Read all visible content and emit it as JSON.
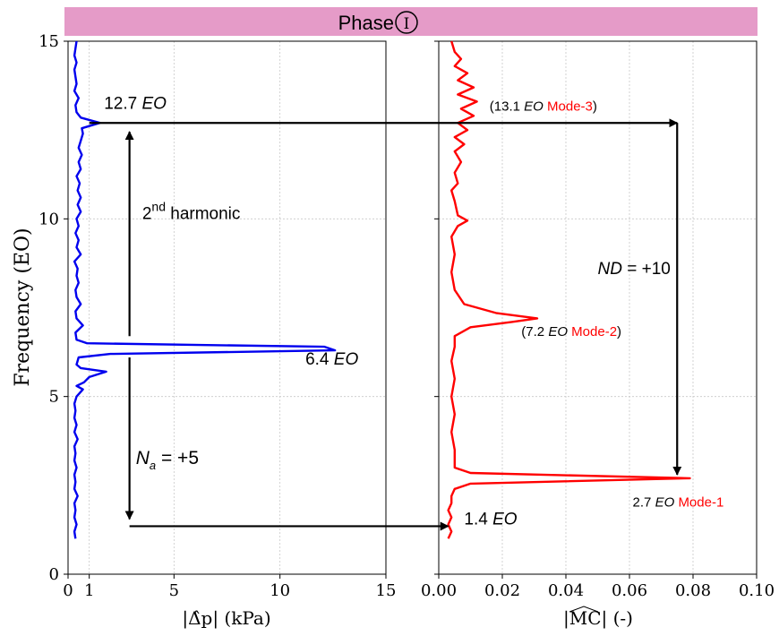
{
  "banner": {
    "title": "Phase",
    "symbol": "I",
    "color": "#e59bc8"
  },
  "chart_data": [
    {
      "type": "line",
      "panel": "left",
      "xlabel": "|Δ̂p| (kPa)",
      "ylabel": "Frequency (EO)",
      "xlim": [
        0,
        15
      ],
      "ylim": [
        0,
        15
      ],
      "xticks": [
        "0",
        "1",
        "5",
        "10",
        "15"
      ],
      "yticks": [
        "0",
        "5",
        "10",
        "15"
      ],
      "grid": true,
      "series": [
        {
          "color": "#0000ee",
          "points": [
            [
              0.35,
              1.0
            ],
            [
              0.3,
              1.2
            ],
            [
              0.4,
              1.4
            ],
            [
              0.3,
              1.6
            ],
            [
              0.35,
              1.8
            ],
            [
              0.3,
              2.0
            ],
            [
              0.45,
              2.2
            ],
            [
              0.3,
              2.4
            ],
            [
              0.35,
              2.6
            ],
            [
              0.3,
              2.8
            ],
            [
              0.4,
              3.0
            ],
            [
              0.3,
              3.2
            ],
            [
              0.35,
              3.4
            ],
            [
              0.3,
              3.6
            ],
            [
              0.45,
              3.8
            ],
            [
              0.3,
              4.0
            ],
            [
              0.4,
              4.2
            ],
            [
              0.3,
              4.4
            ],
            [
              0.35,
              4.6
            ],
            [
              0.3,
              4.8
            ],
            [
              0.4,
              5.0
            ],
            [
              0.7,
              5.2
            ],
            [
              0.4,
              5.3
            ],
            [
              0.75,
              5.4
            ],
            [
              1.0,
              5.55
            ],
            [
              1.8,
              5.7
            ],
            [
              0.6,
              5.8
            ],
            [
              0.4,
              5.9
            ],
            [
              0.5,
              6.1
            ],
            [
              2.0,
              6.2
            ],
            [
              12.6,
              6.3
            ],
            [
              12.1,
              6.4
            ],
            [
              0.9,
              6.5
            ],
            [
              0.4,
              6.6
            ],
            [
              0.35,
              6.8
            ],
            [
              0.7,
              7.0
            ],
            [
              0.4,
              7.2
            ],
            [
              0.35,
              7.4
            ],
            [
              0.6,
              7.6
            ],
            [
              0.4,
              7.8
            ],
            [
              0.35,
              8.0
            ],
            [
              0.5,
              8.2
            ],
            [
              0.4,
              8.4
            ],
            [
              0.45,
              8.6
            ],
            [
              0.3,
              8.8
            ],
            [
              0.6,
              9.0
            ],
            [
              0.4,
              9.2
            ],
            [
              0.5,
              9.4
            ],
            [
              0.35,
              9.6
            ],
            [
              0.5,
              9.8
            ],
            [
              0.4,
              10.0
            ],
            [
              0.6,
              10.2
            ],
            [
              0.45,
              10.4
            ],
            [
              0.6,
              10.6
            ],
            [
              0.45,
              10.8
            ],
            [
              0.55,
              11.0
            ],
            [
              0.4,
              11.2
            ],
            [
              0.6,
              11.4
            ],
            [
              0.5,
              11.6
            ],
            [
              0.65,
              11.8
            ],
            [
              0.5,
              12.0
            ],
            [
              0.6,
              12.2
            ],
            [
              0.7,
              12.4
            ],
            [
              0.65,
              12.55
            ],
            [
              1.5,
              12.7
            ],
            [
              0.6,
              12.85
            ],
            [
              0.4,
              13.0
            ],
            [
              0.35,
              13.2
            ],
            [
              0.5,
              13.4
            ],
            [
              0.3,
              13.6
            ],
            [
              0.4,
              13.8
            ],
            [
              0.35,
              14.0
            ],
            [
              0.3,
              14.2
            ],
            [
              0.4,
              14.4
            ],
            [
              0.3,
              14.6
            ],
            [
              0.35,
              14.8
            ],
            [
              0.4,
              15.0
            ]
          ]
        }
      ],
      "annotations": [
        {
          "text": "12.7",
          "italic": "EO",
          "x": 1.7,
          "y": 13.1
        },
        {
          "text": "6.4",
          "italic": "EO",
          "x": 11.2,
          "y": 5.9
        },
        {
          "text": "2",
          "sup": "nd",
          "after": " harmonic",
          "x": 3.5,
          "y": 10.0
        },
        {
          "text": "N",
          "sub": "a",
          "after": " = +5",
          "x": 3.2,
          "y": 3.1
        }
      ]
    },
    {
      "type": "line",
      "panel": "right",
      "xlabel": "|MC| (-)",
      "xlim": [
        0.0,
        0.1
      ],
      "ylim": [
        0,
        15
      ],
      "xticks": [
        "0.00",
        "0.02",
        "0.04",
        "0.06",
        "0.08",
        "0.10"
      ],
      "grid": true,
      "series": [
        {
          "color": "#ff0000",
          "points": [
            [
              0.003,
              1.0
            ],
            [
              0.004,
              1.2
            ],
            [
              0.003,
              1.4
            ],
            [
              0.004,
              1.6
            ],
            [
              0.003,
              1.8
            ],
            [
              0.004,
              2.0
            ],
            [
              0.004,
              2.2
            ],
            [
              0.005,
              2.4
            ],
            [
              0.01,
              2.55
            ],
            [
              0.079,
              2.7
            ],
            [
              0.01,
              2.85
            ],
            [
              0.005,
              3.0
            ],
            [
              0.005,
              3.5
            ],
            [
              0.004,
              4.0
            ],
            [
              0.005,
              4.5
            ],
            [
              0.004,
              5.0
            ],
            [
              0.005,
              5.5
            ],
            [
              0.004,
              6.0
            ],
            [
              0.005,
              6.4
            ],
            [
              0.005,
              6.7
            ],
            [
              0.01,
              6.95
            ],
            [
              0.023,
              7.1
            ],
            [
              0.031,
              7.2
            ],
            [
              0.018,
              7.35
            ],
            [
              0.008,
              7.6
            ],
            [
              0.005,
              8.0
            ],
            [
              0.004,
              8.5
            ],
            [
              0.005,
              9.0
            ],
            [
              0.004,
              9.5
            ],
            [
              0.006,
              9.8
            ],
            [
              0.009,
              9.95
            ],
            [
              0.006,
              10.1
            ],
            [
              0.005,
              10.5
            ],
            [
              0.004,
              10.8
            ],
            [
              0.006,
              11.0
            ],
            [
              0.005,
              11.3
            ],
            [
              0.007,
              11.6
            ],
            [
              0.005,
              11.9
            ],
            [
              0.008,
              12.1
            ],
            [
              0.005,
              12.3
            ],
            [
              0.009,
              12.5
            ],
            [
              0.006,
              12.7
            ],
            [
              0.011,
              12.9
            ],
            [
              0.007,
              13.1
            ],
            [
              0.012,
              13.3
            ],
            [
              0.006,
              13.5
            ],
            [
              0.011,
              13.7
            ],
            [
              0.006,
              13.9
            ],
            [
              0.009,
              14.1
            ],
            [
              0.005,
              14.3
            ],
            [
              0.007,
              14.5
            ],
            [
              0.005,
              14.7
            ],
            [
              0.004,
              15.0
            ]
          ]
        }
      ],
      "annotations": [
        {
          "parts": [
            {
              "t": "(13.1 "
            },
            {
              "t": "EO",
              "i": true
            },
            {
              "t": " "
            },
            {
              "t": "Mode-3",
              "c": "red"
            },
            {
              "t": ")"
            }
          ],
          "x": 0.016,
          "y": 13.05
        },
        {
          "parts": [
            {
              "t": "(7.2 "
            },
            {
              "t": "EO",
              "i": true
            },
            {
              "t": " "
            },
            {
              "t": "Mode-2",
              "c": "red"
            },
            {
              "t": ")"
            }
          ],
          "x": 0.026,
          "y": 6.7
        },
        {
          "parts": [
            {
              "t": "2.7 "
            },
            {
              "t": "EO",
              "i": true
            },
            {
              "t": " "
            },
            {
              "t": "Mode-1",
              "c": "red"
            }
          ],
          "x": 0.061,
          "y": 1.9
        },
        {
          "parts": [
            {
              "t": "1.4 "
            },
            {
              "t": "EO",
              "i": true
            }
          ],
          "x": 0.008,
          "y": 1.4
        },
        {
          "parts": [
            {
              "t": "ND",
              "i": true
            },
            {
              "t": " = +10"
            }
          ],
          "x": 0.05,
          "y": 8.45
        }
      ]
    }
  ],
  "arrows": [
    {
      "id": "arrow-12-7-to-13-1",
      "from": [
        "left",
        1.0,
        12.7
      ],
      "to": [
        "right",
        0.075,
        12.7
      ]
    },
    {
      "id": "arrow-nd-plus-10",
      "from": [
        "right",
        0.075,
        12.7
      ],
      "to": [
        "right",
        0.075,
        2.8
      ]
    },
    {
      "id": "arrow-harmonic-up",
      "from": [
        "left",
        2.9,
        6.7
      ],
      "to": [
        "left",
        2.9,
        12.45
      ]
    },
    {
      "id": "arrow-na-down",
      "from": [
        "left",
        2.9,
        6.1
      ],
      "to": [
        "left",
        2.9,
        1.55
      ]
    },
    {
      "id": "arrow-1-4-to-right",
      "from": [
        "left",
        2.9,
        1.35
      ],
      "to": [
        "right",
        0.003,
        1.35
      ]
    }
  ]
}
